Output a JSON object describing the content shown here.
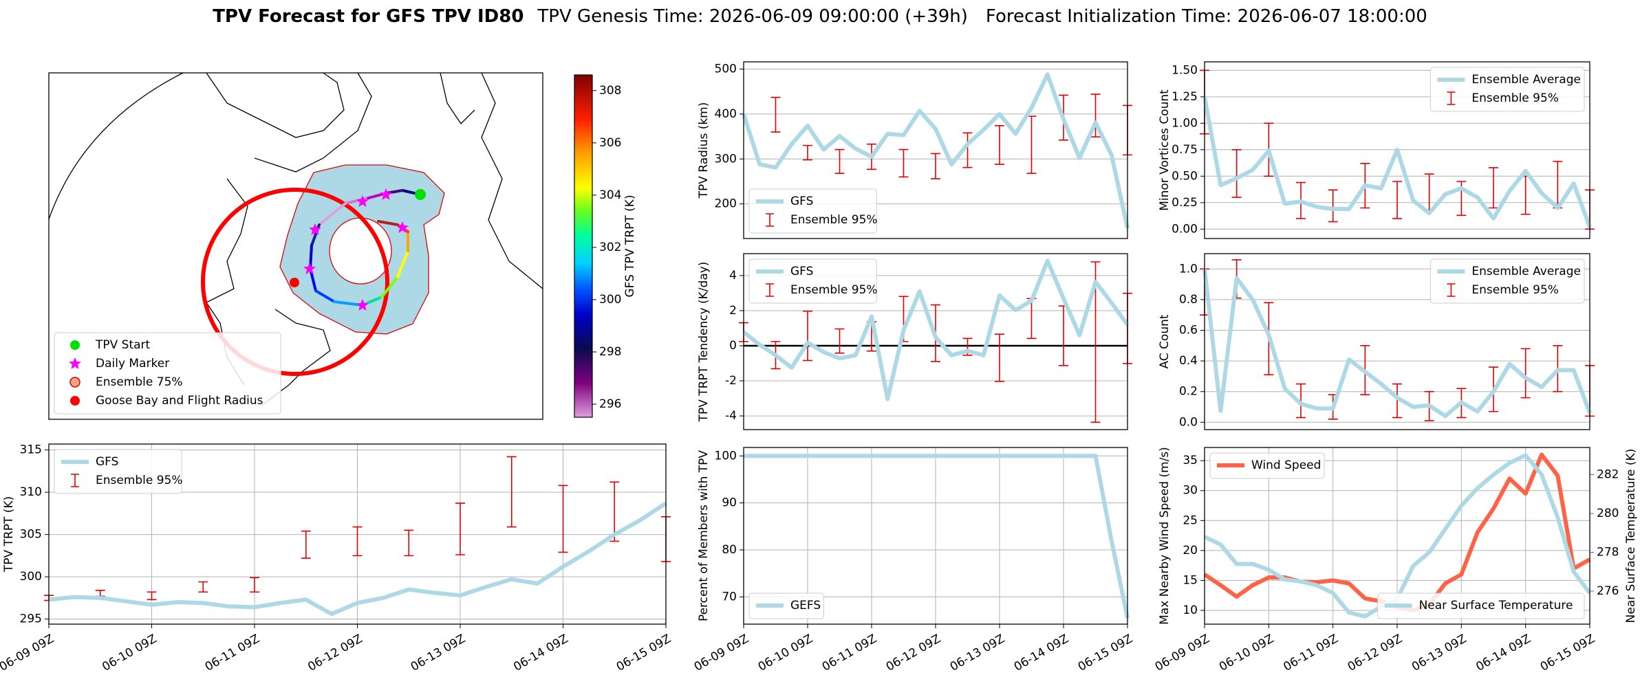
{
  "suptitle": {
    "main": "TPV Forecast for GFS TPV ID80",
    "genesis": "TPV Genesis Time: 2026-06-09 09:00:00 (+39h)",
    "init": "Forecast Initialization Time: 2026-06-07 18:00:00"
  },
  "chart_data": [
    {
      "type": "map",
      "colorbar_label": "GFS TPV TRPT (K)",
      "clim": [
        295.5,
        308.6
      ],
      "colorbar_ticks": [
        296,
        298,
        300,
        302,
        304,
        306,
        308
      ],
      "legend": "lower left",
      "legend_entries": [
        {
          "label": "TPV Start",
          "marker": "o",
          "color": "#00e000"
        },
        {
          "label": "Daily Marker",
          "marker": "*",
          "color": "#ff00ff"
        },
        {
          "label": "Ensemble 75%",
          "marker": "o",
          "color": "#f4a582",
          "edgecolor": "#e00000"
        },
        {
          "label": "Goose Bay and Flight Radius",
          "marker": "o",
          "color": "#ff0000"
        }
      ]
    },
    {
      "type": "line",
      "ylabel": "TPV TRPT (K)",
      "ylim": [
        294.4,
        315.7
      ],
      "yticks": [
        295,
        300,
        305,
        310,
        315
      ],
      "grid": true,
      "legend": "upper left",
      "categories": [
        "06-09 09Z",
        null,
        null,
        null,
        "06-10 09Z",
        null,
        null,
        null,
        "06-11 09Z",
        null,
        null,
        null,
        "06-12 09Z",
        null,
        null,
        null,
        "06-13 09Z",
        null,
        null,
        null,
        "06-14 09Z",
        null,
        null,
        null,
        "06-15 09Z"
      ],
      "series": [
        {
          "name": "GFS",
          "color": "#add8e6",
          "values": [
            297.3,
            297.6,
            297.5,
            297.1,
            296.7,
            297.0,
            296.9,
            296.5,
            296.4,
            296.9,
            297.3,
            295.6,
            296.9,
            297.5,
            298.5,
            298.1,
            297.8,
            298.8,
            299.7,
            299.2,
            301.2,
            303.0,
            305.0,
            306.7,
            308.7
          ]
        }
      ],
      "ensemble": {
        "name": "Ensemble 95%",
        "color": "#e00000",
        "low": [
          297.2,
          null,
          297.7,
          null,
          297.3,
          null,
          298.2,
          null,
          298.2,
          null,
          302.2,
          null,
          302.5,
          null,
          302.5,
          null,
          302.6,
          null,
          305.9,
          null,
          302.9,
          null,
          304.2,
          null,
          301.8
        ],
        "high": [
          297.8,
          null,
          298.4,
          null,
          298.2,
          null,
          299.4,
          null,
          299.9,
          null,
          305.4,
          null,
          305.9,
          null,
          305.5,
          null,
          308.7,
          null,
          314.2,
          null,
          310.8,
          null,
          311.2,
          null,
          307.1
        ]
      }
    },
    {
      "type": "line",
      "ylabel": "TPV Radius (km)",
      "ylim": [
        123,
        516
      ],
      "yticks": [
        200,
        300,
        400,
        500
      ],
      "grid": true,
      "legend": "lower left",
      "series": [
        {
          "name": "GFS",
          "color": "#add8e6",
          "values": [
            400,
            288,
            281,
            333,
            374,
            321,
            351,
            323,
            305,
            356,
            353,
            407,
            367,
            288,
            333,
            365,
            400,
            356,
            414,
            488,
            388,
            302,
            381,
            309,
            146
          ]
        }
      ],
      "ensemble": {
        "name": "Ensemble 95%",
        "color": "#e00000",
        "low": [
          null,
          null,
          360,
          null,
          298,
          null,
          268,
          null,
          277,
          null,
          260,
          null,
          256,
          null,
          281,
          null,
          288,
          null,
          268,
          null,
          342,
          null,
          349,
          null,
          309
        ],
        "high": [
          null,
          null,
          437,
          null,
          330,
          null,
          321,
          null,
          333,
          null,
          321,
          null,
          312,
          null,
          358,
          null,
          374,
          null,
          395,
          null,
          442,
          null,
          444,
          null,
          419
        ]
      }
    },
    {
      "type": "line",
      "ylabel": "TPV TRPT Tendency (K/day)",
      "ylim": [
        -4.78,
        5.25
      ],
      "yticks": [
        -4,
        -2,
        0,
        2,
        4
      ],
      "grid": true,
      "zero_line": true,
      "legend": "upper left",
      "series": [
        {
          "name": "GFS",
          "color": "#add8e6",
          "values": [
            0.78,
            0.06,
            -0.54,
            -1.25,
            0.18,
            -0.36,
            -0.72,
            -0.54,
            1.67,
            -3.04,
            0.9,
            3.1,
            0.48,
            -0.54,
            -0.3,
            -0.54,
            2.87,
            2.03,
            2.57,
            4.84,
            2.69,
            0.6,
            3.64,
            2.45,
            1.19
          ]
        }
      ],
      "ensemble": {
        "name": "Ensemble 95%",
        "color": "#e00000",
        "low": [
          0.24,
          null,
          -1.31,
          null,
          -0.84,
          null,
          -0.42,
          null,
          -0.3,
          null,
          0.24,
          null,
          -0.9,
          null,
          -0.54,
          null,
          -2.03,
          null,
          0.42,
          null,
          -1.13,
          null,
          -4.36,
          null,
          -1.01
        ],
        "high": [
          1.31,
          null,
          0.24,
          null,
          1.97,
          null,
          0.96,
          null,
          1.37,
          null,
          2.81,
          null,
          2.33,
          null,
          0.42,
          null,
          0.66,
          null,
          2.69,
          null,
          2.27,
          null,
          4.78,
          null,
          2.99
        ]
      }
    },
    {
      "type": "line",
      "ylabel": "Percent of Members with TPV",
      "ylim": [
        64.2,
        101.8
      ],
      "yticks": [
        70,
        80,
        90,
        100
      ],
      "grid": true,
      "legend": "lower left",
      "categories": [
        "06-09 09Z",
        null,
        null,
        null,
        "06-10 09Z",
        null,
        null,
        null,
        "06-11 09Z",
        null,
        null,
        null,
        "06-12 09Z",
        null,
        null,
        null,
        "06-13 09Z",
        null,
        null,
        null,
        "06-14 09Z",
        null,
        null,
        null,
        "06-15 09Z"
      ],
      "series": [
        {
          "name": "GEFS",
          "color": "#add8e6",
          "values": [
            100,
            100,
            100,
            100,
            100,
            100,
            100,
            100,
            100,
            100,
            100,
            100,
            100,
            100,
            100,
            100,
            100,
            100,
            100,
            100,
            100,
            100,
            100,
            82,
            65.5
          ]
        }
      ]
    },
    {
      "type": "line",
      "ylabel": "Minor Vortices Count",
      "ylim": [
        -0.089,
        1.58
      ],
      "yticks": [
        {
          "value": 0,
          "label": "0.00"
        },
        0.25,
        {
          "value": 0.5,
          "label": "0.50"
        },
        0.75,
        {
          "value": 1,
          "label": "1.00"
        },
        1.25,
        {
          "value": 1.5,
          "label": "1.50"
        }
      ],
      "grid": true,
      "legend": "upper right",
      "series": [
        {
          "name": "Ensemble Average",
          "color": "#add8e6",
          "values": [
            1.25,
            0.415,
            0.48,
            0.56,
            0.74,
            0.24,
            0.26,
            0.21,
            0.19,
            0.19,
            0.415,
            0.385,
            0.75,
            0.27,
            0.15,
            0.33,
            0.385,
            0.3,
            0.1,
            0.36,
            0.55,
            0.34,
            0.2,
            0.43,
            0.02
          ]
        }
      ],
      "ensemble": {
        "name": "Ensemble 95%",
        "color": "#e00000",
        "low": [
          0.9,
          null,
          0.3,
          null,
          0.5,
          null,
          0.1,
          null,
          0.07,
          null,
          0.2,
          null,
          0.1,
          null,
          0.18,
          null,
          0.13,
          null,
          0.2,
          null,
          0.14,
          null,
          0.2,
          null,
          0.0
        ],
        "high": [
          1.5,
          null,
          0.75,
          null,
          1.0,
          null,
          0.44,
          null,
          0.37,
          null,
          0.62,
          null,
          0.45,
          null,
          0.52,
          null,
          0.45,
          null,
          0.58,
          null,
          0.5,
          null,
          0.64,
          null,
          0.37
        ]
      }
    },
    {
      "type": "line",
      "ylabel": "AC Count",
      "ylim": [
        -0.048,
        1.1
      ],
      "yticks": [
        {
          "value": 0,
          "label": "0.0"
        },
        0.2,
        0.4,
        0.6,
        0.8,
        {
          "value": 1,
          "label": "1.0"
        }
      ],
      "grid": true,
      "legend": "upper right",
      "series": [
        {
          "name": "Ensemble Average",
          "color": "#add8e6",
          "values": [
            1.0,
            0.075,
            0.94,
            0.8,
            0.57,
            0.22,
            0.12,
            0.09,
            0.09,
            0.41,
            0.33,
            0.25,
            0.16,
            0.1,
            0.11,
            0.04,
            0.13,
            0.07,
            0.2,
            0.38,
            0.29,
            0.23,
            0.34,
            0.34,
            0.06
          ]
        }
      ],
      "ensemble": {
        "name": "Ensemble 95%",
        "color": "#e00000",
        "low": [
          0.7,
          null,
          0.81,
          null,
          0.31,
          null,
          0.03,
          null,
          0.02,
          null,
          0.18,
          null,
          0.03,
          null,
          0.01,
          null,
          0.03,
          null,
          0.07,
          null,
          0.16,
          null,
          0.2,
          null,
          0.04
        ],
        "high": [
          1.0,
          null,
          1.06,
          null,
          0.78,
          null,
          0.25,
          null,
          0.18,
          null,
          0.5,
          null,
          0.25,
          null,
          0.2,
          null,
          0.22,
          null,
          0.36,
          null,
          0.48,
          null,
          0.5,
          null,
          0.37
        ]
      }
    },
    {
      "type": "line",
      "ylabel": "Max Nearby Wind Speed (m/s)",
      "ylabel_color": "#ff6347",
      "ylim": [
        7.7,
        37.2
      ],
      "yticks": [
        10,
        15,
        20,
        25,
        30,
        35
      ],
      "y2label": "Near Surface Temperature (K)",
      "y2_color": "#4169e1",
      "y2lim": [
        274.3,
        283.4
      ],
      "y2ticks": [
        276,
        278,
        280,
        282
      ],
      "grid": true,
      "legend": "upper left",
      "categories": [
        "06-09 09Z",
        null,
        null,
        null,
        "06-10 09Z",
        null,
        null,
        null,
        "06-11 09Z",
        null,
        null,
        null,
        "06-12 09Z",
        null,
        null,
        null,
        "06-13 09Z",
        null,
        null,
        null,
        "06-14 09Z",
        null,
        null,
        null,
        "06-15 09Z"
      ],
      "series": [
        {
          "name": "Wind Speed",
          "color": "#ff6347",
          "values": [
            16.0,
            14.2,
            12.3,
            14.2,
            15.5,
            15.5,
            14.8,
            14.7,
            15.0,
            14.5,
            12.0,
            11.5,
            10.5,
            10.0,
            11.0,
            14.5,
            16.0,
            23.0,
            27.0,
            32.0,
            29.5,
            36.0,
            32.5,
            17.0,
            18.5
          ]
        },
        {
          "name": "Near Surface Temperature",
          "color": "#add8e6",
          "axis": "y2",
          "legend": "lower right",
          "values": [
            278.8,
            278.4,
            277.4,
            277.4,
            277.1,
            276.6,
            276.5,
            276.3,
            275.9,
            274.9,
            274.7,
            275.2,
            275.6,
            277.3,
            278.0,
            279.2,
            280.4,
            281.3,
            282.0,
            282.6,
            283.0,
            282.0,
            279.8,
            277.0,
            275.9
          ]
        }
      ]
    }
  ]
}
